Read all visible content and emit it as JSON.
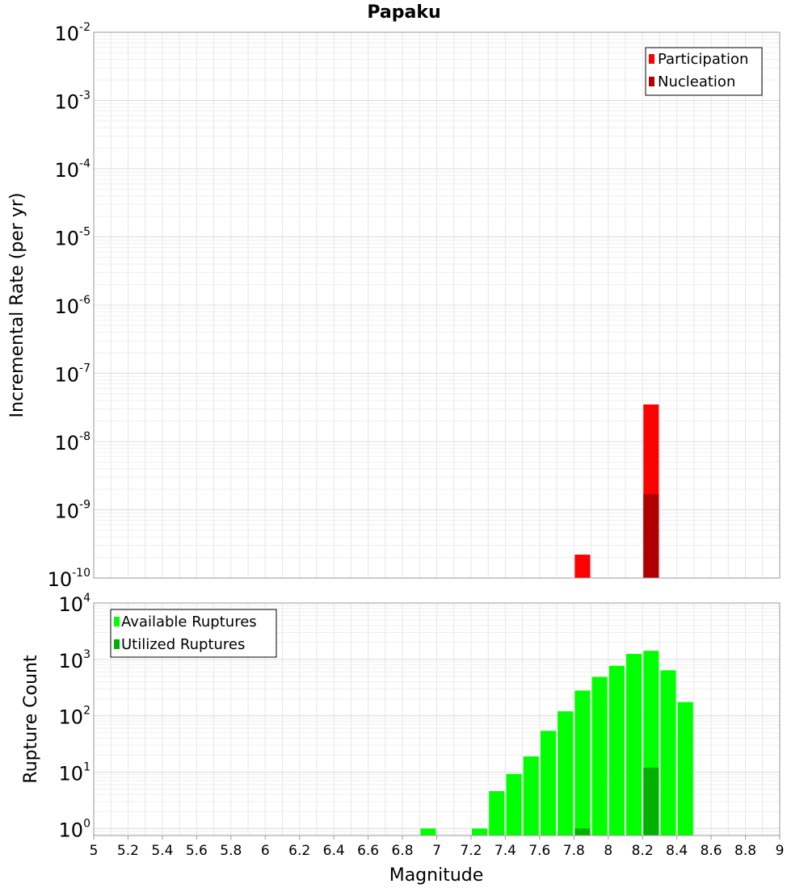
{
  "chart_data": [
    {
      "type": "bar",
      "panel": "top",
      "title": "Papaku",
      "xlabel": "",
      "ylabel": "Incremental Rate (per yr)",
      "xlim": [
        5,
        9
      ],
      "ylim": [
        1e-10,
        0.01
      ],
      "yscale": "log",
      "bar_width": 0.09,
      "grid": true,
      "legend": {
        "position": "top-right",
        "entries": [
          {
            "name": "Participation",
            "color": "#ff0000"
          },
          {
            "name": "Nucleation",
            "color": "#b00000"
          }
        ]
      },
      "ytick_labels": [
        {
          "base": "10",
          "exp": "-10",
          "value": 1e-10
        },
        {
          "base": "10",
          "exp": "-9",
          "value": 1e-09
        },
        {
          "base": "10",
          "exp": "-8",
          "value": 1e-08
        },
        {
          "base": "10",
          "exp": "-7",
          "value": 1e-07
        },
        {
          "base": "10",
          "exp": "-6",
          "value": 1e-06
        },
        {
          "base": "10",
          "exp": "-5",
          "value": 1e-05
        },
        {
          "base": "10",
          "exp": "-4",
          "value": 0.0001
        },
        {
          "base": "10",
          "exp": "-3",
          "value": 0.001
        },
        {
          "base": "10",
          "exp": "-2",
          "value": 0.01
        }
      ],
      "series": [
        {
          "name": "Participation",
          "color": "#ff0000",
          "x": [
            7.85,
            8.25
          ],
          "values": [
            2.2e-10,
            3.5e-08
          ]
        },
        {
          "name": "Nucleation",
          "color": "#b00000",
          "x": [
            8.25
          ],
          "values": [
            1.7e-09
          ]
        }
      ]
    },
    {
      "type": "bar",
      "panel": "bottom",
      "xlabel": "Magnitude",
      "ylabel": "Rupture Count",
      "xlim": [
        5,
        9
      ],
      "ylim": [
        0.75,
        10000
      ],
      "yscale": "log",
      "bar_width": 0.09,
      "grid": true,
      "xtick_labels": [
        "5",
        "5.2",
        "5.4",
        "5.6",
        "5.8",
        "6",
        "6.2",
        "6.4",
        "6.6",
        "6.8",
        "7",
        "7.2",
        "7.4",
        "7.6",
        "7.8",
        "8",
        "8.2",
        "8.4",
        "8.6",
        "8.8",
        "9"
      ],
      "legend": {
        "position": "top-left",
        "entries": [
          {
            "name": "Available Ruptures",
            "color": "#00ff00"
          },
          {
            "name": "Utilized Ruptures",
            "color": "#00b000"
          }
        ]
      },
      "ytick_labels": [
        {
          "base": "10",
          "exp": "0",
          "value": 1
        },
        {
          "base": "10",
          "exp": "1",
          "value": 10
        },
        {
          "base": "10",
          "exp": "2",
          "value": 100
        },
        {
          "base": "10",
          "exp": "3",
          "value": 1000
        },
        {
          "base": "10",
          "exp": "4",
          "value": 10000
        }
      ],
      "series": [
        {
          "name": "Available Ruptures",
          "color": "#00ff00",
          "x": [
            6.95,
            7.25,
            7.35,
            7.45,
            7.55,
            7.65,
            7.75,
            7.85,
            7.95,
            8.05,
            8.15,
            8.25,
            8.35,
            8.45
          ],
          "values": [
            1,
            1,
            4.6,
            9.3,
            19,
            54,
            120,
            280,
            490,
            770,
            1250,
            1420,
            640,
            175
          ]
        },
        {
          "name": "Utilized Ruptures",
          "color": "#00b000",
          "x": [
            7.85,
            8.25
          ],
          "values": [
            1,
            12
          ]
        }
      ]
    }
  ]
}
